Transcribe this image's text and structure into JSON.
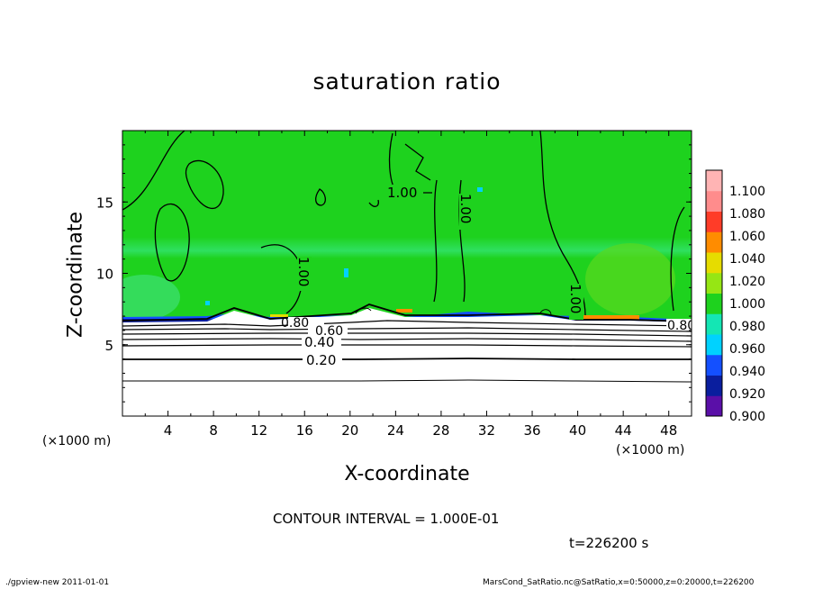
{
  "chart_data": {
    "type": "contour",
    "title": "saturation ratio",
    "xlabel": "X-coordinate",
    "ylabel": "Z-coordinate",
    "x_unit": "(×1000 m)",
    "y_unit": "(×1000 m)",
    "xlim": [
      0,
      50
    ],
    "ylim": [
      0,
      20
    ],
    "x_ticks": [
      4,
      8,
      12,
      16,
      20,
      24,
      28,
      32,
      36,
      40,
      44,
      48
    ],
    "y_ticks": [
      5,
      10,
      15
    ],
    "colorbar": {
      "levels": [
        "0.900",
        "0.920",
        "0.940",
        "0.960",
        "0.980",
        "1.000",
        "1.020",
        "1.040",
        "1.060",
        "1.080",
        "1.100"
      ],
      "colors": [
        "#5a0fa8",
        "#0a1e9e",
        "#1450ff",
        "#00d2ff",
        "#14e6b4",
        "#1ed21e",
        "#96e614",
        "#e6dc00",
        "#ff8c00",
        "#ff3c28",
        "#ff8c8c",
        "#ffb4b4"
      ]
    },
    "contour_labels": [
      "1.00",
      "1.00",
      "1.00",
      "1.00",
      "0.80",
      "0.60",
      "0.40",
      "0.20",
      "0.80"
    ],
    "contour_levels_below": [
      0.2,
      0.3,
      0.4,
      0.5,
      0.6,
      0.7,
      0.8,
      0.9
    ],
    "contour_interval_text": "CONTOUR INTERVAL = 1.000E-01",
    "time_text": "t=226200 s"
  },
  "footer": {
    "left": "./gpview-new   2011-01-01",
    "right": "MarsCond_SatRatio.nc@SatRatio,x=0:50000,z=0:20000,t=226200"
  }
}
